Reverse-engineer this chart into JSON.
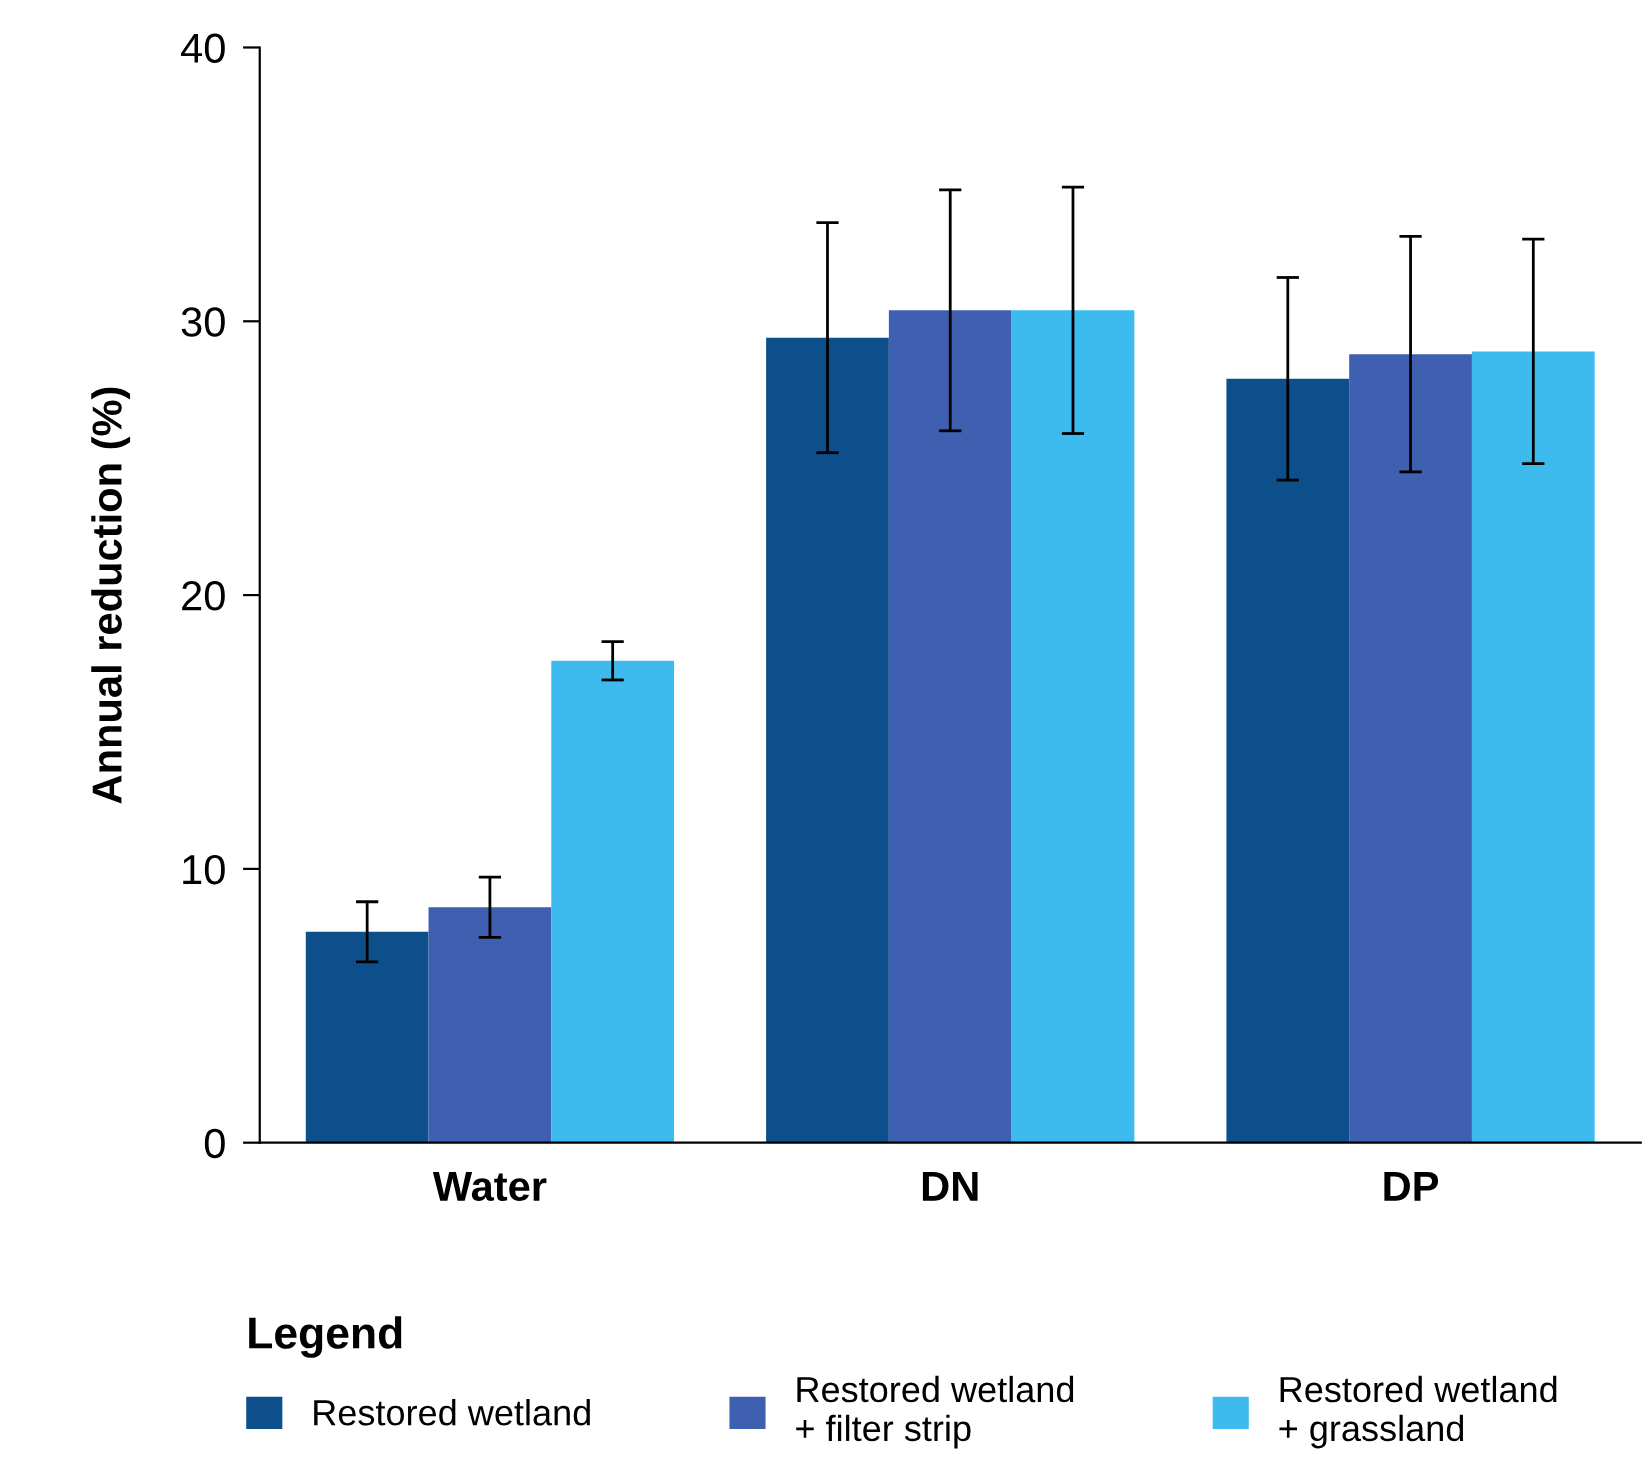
{
  "chart_data": {
    "type": "bar",
    "ylabel": "Annual reduction (%)",
    "legend_title": "Legend",
    "categories": [
      "Water",
      "DN",
      "DP"
    ],
    "series": [
      {
        "name": "Restored wetland",
        "color": "#0d4f8b",
        "values": [
          7.7,
          29.4,
          27.9
        ],
        "errors": [
          1.1,
          4.2,
          3.7
        ]
      },
      {
        "name": "Restored wetland\n+ filter strip",
        "color": "#3f5fb0",
        "values": [
          8.6,
          30.4,
          28.8
        ],
        "errors": [
          1.1,
          4.4,
          4.3
        ]
      },
      {
        "name": "Restored wetland\n+ grassland",
        "color": "#3dbbee",
        "values": [
          17.6,
          30.4,
          28.9
        ],
        "errors": [
          0.7,
          4.5,
          4.1
        ]
      }
    ],
    "ylim": [
      0,
      40
    ],
    "yticks": [
      0,
      10,
      20,
      30,
      40
    ],
    "legend": "bottom",
    "grid": false
  }
}
